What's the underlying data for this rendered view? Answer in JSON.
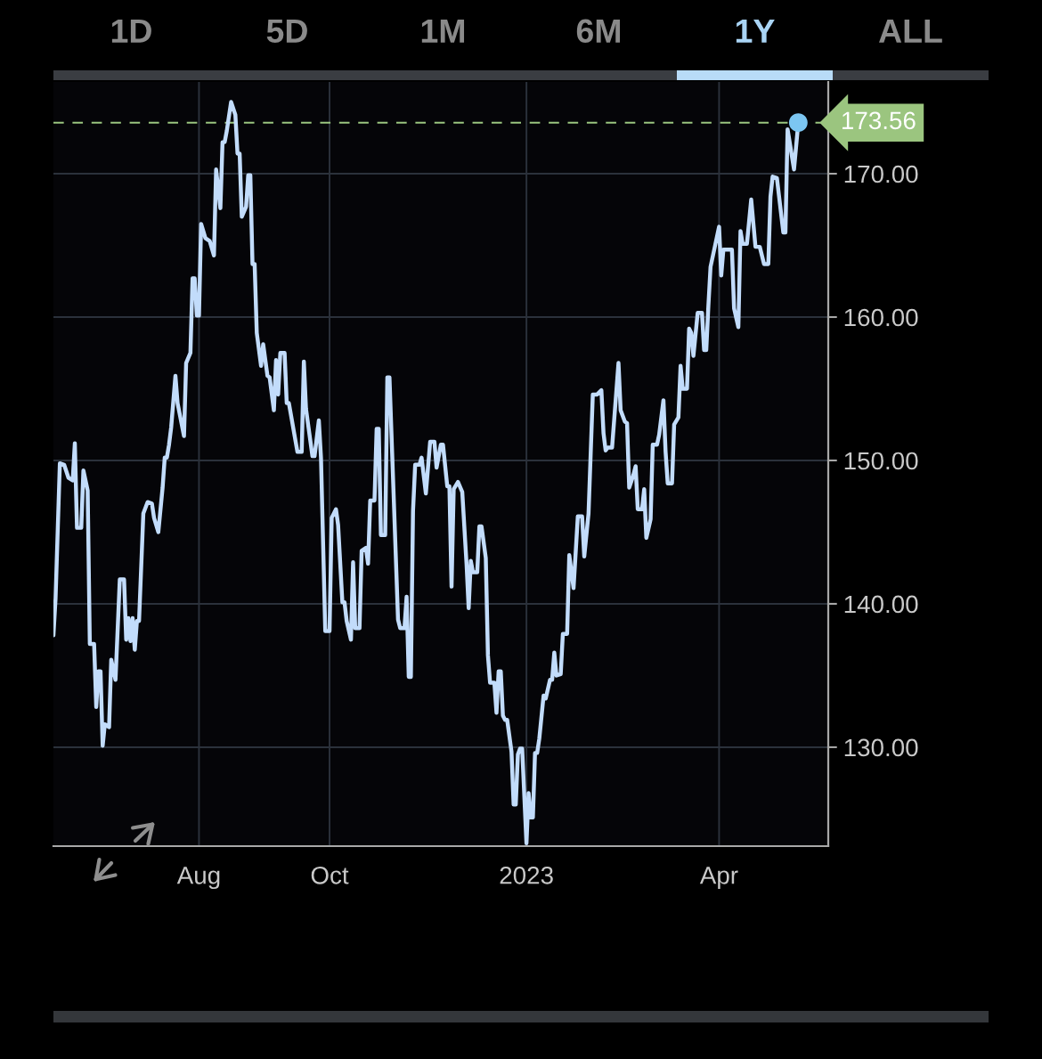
{
  "chart_data": {
    "type": "line",
    "line_style": "solid",
    "grid": true,
    "annotations": [
      "1D",
      "5D",
      "1M",
      "6M",
      "1Y",
      "ALL"
    ],
    "xlim": [
      "2022-05-25",
      "2023-05-22"
    ],
    "xticks": [
      {
        "value": "2022-08-01",
        "label": "Aug"
      },
      {
        "value": "2022-10-01",
        "label": "Oct"
      },
      {
        "value": "2023-01-01",
        "label": "2023"
      },
      {
        "value": "2023-04-01",
        "label": "Apr"
      }
    ],
    "ylim": [
      123.1,
      176.4
    ],
    "yticks": [
      {
        "value": 130,
        "label": "130.00"
      },
      {
        "value": 140,
        "label": "140.00"
      },
      {
        "value": 150,
        "label": "150.00"
      },
      {
        "value": 160,
        "label": "160.00"
      },
      {
        "value": 170,
        "label": "170.00"
      }
    ],
    "ref_lines": [
      {
        "axis": "y",
        "value": 173.56,
        "label": "173.56",
        "color": "#9bc57f",
        "line_style": "dashed"
      }
    ],
    "x": [
      "2022-05-25",
      "2022-05-26",
      "2022-05-28",
      "2022-05-30",
      "2022-06-01",
      "2022-06-03",
      "2022-06-04",
      "2022-06-05",
      "2022-06-07",
      "2022-06-08",
      "2022-06-10",
      "2022-06-11",
      "2022-06-13",
      "2022-06-14",
      "2022-06-15",
      "2022-06-16",
      "2022-06-17",
      "2022-06-18",
      "2022-06-20",
      "2022-06-21",
      "2022-06-23",
      "2022-06-25",
      "2022-06-27",
      "2022-06-28",
      "2022-06-29",
      "2022-06-30",
      "2022-07-01",
      "2022-07-02",
      "2022-07-03",
      "2022-07-04",
      "2022-07-06",
      "2022-07-08",
      "2022-07-10",
      "2022-07-11",
      "2022-07-13",
      "2022-07-15",
      "2022-07-16",
      "2022-07-17",
      "2022-07-18",
      "2022-07-19",
      "2022-07-21",
      "2022-07-22",
      "2022-07-25",
      "2022-07-26",
      "2022-07-28",
      "2022-07-29",
      "2022-07-30",
      "2022-07-31",
      "2022-08-01",
      "2022-08-02",
      "2022-08-04",
      "2022-08-06",
      "2022-08-08",
      "2022-08-09",
      "2022-08-11",
      "2022-08-12",
      "2022-08-13",
      "2022-08-14",
      "2022-08-16",
      "2022-08-18",
      "2022-08-19",
      "2022-08-20",
      "2022-08-21",
      "2022-08-23",
      "2022-08-24",
      "2022-08-25",
      "2022-08-26",
      "2022-08-27",
      "2022-08-28",
      "2022-08-30",
      "2022-08-31",
      "2022-09-02",
      "2022-09-03",
      "2022-09-05",
      "2022-09-06",
      "2022-09-07",
      "2022-09-08",
      "2022-09-10",
      "2022-09-11",
      "2022-09-12",
      "2022-09-16",
      "2022-09-18",
      "2022-09-19",
      "2022-09-20",
      "2022-09-21",
      "2022-09-23",
      "2022-09-24",
      "2022-09-26",
      "2022-09-27",
      "2022-09-29",
      "2022-10-01",
      "2022-10-02",
      "2022-10-04",
      "2022-10-05",
      "2022-10-07",
      "2022-10-08",
      "2022-10-09",
      "2022-10-11",
      "2022-10-12",
      "2022-10-13",
      "2022-10-15",
      "2022-10-16",
      "2022-10-18",
      "2022-10-19",
      "2022-10-20",
      "2022-10-22",
      "2022-10-23",
      "2022-10-24",
      "2022-10-25",
      "2022-10-27",
      "2022-10-28",
      "2022-10-29",
      "2022-11-02",
      "2022-11-03",
      "2022-11-05",
      "2022-11-06",
      "2022-11-07",
      "2022-11-08",
      "2022-11-09",
      "2022-11-10",
      "2022-11-12",
      "2022-11-13",
      "2022-11-15",
      "2022-11-17",
      "2022-11-19",
      "2022-11-20",
      "2022-11-22",
      "2022-11-23",
      "2022-11-25",
      "2022-11-26",
      "2022-11-27",
      "2022-11-28",
      "2022-11-30",
      "2022-12-02",
      "2022-12-04",
      "2022-12-05",
      "2022-12-06",
      "2022-12-07",
      "2022-12-09",
      "2022-12-10",
      "2022-12-11",
      "2022-12-13",
      "2022-12-14",
      "2022-12-15",
      "2022-12-17",
      "2022-12-18",
      "2022-12-19",
      "2022-12-20",
      "2022-12-21",
      "2022-12-22",
      "2022-12-23",
      "2022-12-25",
      "2022-12-26",
      "2022-12-27",
      "2022-12-28",
      "2022-12-29",
      "2022-12-30",
      "2023-01-01",
      "2023-01-02",
      "2023-01-03",
      "2023-01-04",
      "2023-01-05",
      "2023-01-06",
      "2023-01-07",
      "2023-01-09",
      "2023-01-10",
      "2023-01-12",
      "2023-01-13",
      "2023-01-14",
      "2023-01-15",
      "2023-01-17",
      "2023-01-18",
      "2023-01-20",
      "2023-01-21",
      "2023-01-23",
      "2023-01-25",
      "2023-01-27",
      "2023-01-28",
      "2023-01-30",
      "2023-02-01",
      "2023-02-03",
      "2023-02-05",
      "2023-02-06",
      "2023-02-07",
      "2023-02-08",
      "2023-02-10",
      "2023-02-13",
      "2023-02-14",
      "2023-02-16",
      "2023-02-17",
      "2023-02-18",
      "2023-02-20",
      "2023-02-21",
      "2023-02-22",
      "2023-02-24",
      "2023-02-25",
      "2023-02-26",
      "2023-02-28",
      "2023-03-01",
      "2023-03-03",
      "2023-03-04",
      "2023-03-06",
      "2023-03-07",
      "2023-03-08",
      "2023-03-10",
      "2023-03-11",
      "2023-03-13",
      "2023-03-14",
      "2023-03-15",
      "2023-03-17",
      "2023-03-18",
      "2023-03-19",
      "2023-03-20",
      "2023-03-22",
      "2023-03-24",
      "2023-03-25",
      "2023-03-26",
      "2023-03-27",
      "2023-03-28",
      "2023-03-30",
      "2023-04-01",
      "2023-04-02",
      "2023-04-03",
      "2023-04-07",
      "2023-04-08",
      "2023-04-10",
      "2023-04-11",
      "2023-04-12",
      "2023-04-14",
      "2023-04-16",
      "2023-04-18",
      "2023-04-20",
      "2023-04-22",
      "2023-04-24",
      "2023-04-25",
      "2023-04-26",
      "2023-04-28",
      "2023-05-01",
      "2023-05-02",
      "2023-05-03",
      "2023-05-06",
      "2023-05-08"
    ],
    "series": [
      {
        "color": "#c2dcfb",
        "values": [
          137.8,
          140.4,
          149.8,
          149.7,
          148.8,
          148.6,
          151.2,
          145.3,
          145.3,
          149.3,
          147.9,
          137.2,
          137.2,
          132.8,
          135.3,
          135.3,
          130.1,
          131.6,
          131.4,
          136.1,
          134.7,
          141.7,
          141.7,
          137.5,
          139.0,
          137.4,
          139.0,
          136.8,
          138.8,
          138.8,
          146.3,
          147.1,
          147.0,
          146.0,
          145.0,
          148.1,
          150.2,
          150.2,
          151.1,
          152.3,
          155.9,
          154.0,
          151.7,
          156.8,
          157.5,
          162.7,
          162.7,
          160.1,
          160.1,
          166.5,
          165.5,
          165.3,
          164.3,
          170.3,
          167.6,
          172.2,
          172.2,
          173.0,
          175.0,
          174.1,
          171.4,
          171.4,
          167.0,
          167.7,
          169.9,
          169.9,
          163.7,
          163.7,
          158.9,
          156.6,
          158.1,
          155.9,
          155.8,
          153.5,
          157.0,
          154.6,
          157.5,
          157.5,
          154.0,
          154.0,
          150.6,
          150.6,
          156.9,
          153.6,
          152.5,
          150.3,
          150.3,
          152.8,
          150.2,
          138.1,
          138.1,
          146.0,
          146.6,
          145.5,
          140.1,
          140.1,
          138.8,
          137.5,
          142.9,
          138.3,
          138.3,
          143.7,
          143.9,
          142.8,
          147.2,
          147.2,
          152.2,
          152.2,
          144.8,
          144.8,
          155.8,
          155.8,
          138.9,
          138.3,
          138.3,
          140.5,
          134.9,
          134.9,
          146.5,
          149.7,
          149.7,
          150.2,
          147.7,
          151.3,
          151.3,
          149.5,
          151.1,
          151.1,
          148.2,
          148.2,
          141.2,
          148.0,
          148.5,
          147.8,
          142.8,
          139.7,
          143.0,
          142.2,
          142.2,
          145.4,
          145.4,
          143.2,
          136.4,
          134.5,
          134.5,
          132.4,
          135.3,
          135.3,
          132.2,
          131.9,
          131.9,
          129.7,
          126.0,
          126.0,
          129.5,
          129.9,
          129.9,
          123.3,
          126.8,
          125.1,
          125.1,
          129.6,
          129.6,
          130.6,
          133.6,
          133.4,
          134.7,
          134.7,
          136.6,
          135.0,
          135.1,
          137.9,
          137.9,
          143.4,
          141.1,
          146.1,
          146.1,
          143.3,
          146.3,
          154.6,
          154.6,
          154.9,
          151.9,
          150.7,
          150.9,
          150.9,
          156.8,
          153.5,
          152.7,
          152.6,
          148.1,
          149.0,
          149.6,
          146.6,
          146.6,
          148.0,
          144.6,
          145.9,
          151.1,
          151.1,
          151.8,
          154.2,
          150.6,
          148.4,
          148.4,
          152.5,
          153.0,
          156.6,
          155.0,
          155.0,
          159.2,
          158.9,
          157.3,
          160.3,
          160.3,
          157.7,
          157.7,
          160.8,
          163.5,
          164.9,
          166.3,
          162.9,
          164.7,
          164.7,
          160.6,
          159.3,
          166.0,
          165.1,
          165.1,
          168.2,
          164.9,
          164.9,
          163.7,
          163.7,
          168.4,
          169.8,
          169.7,
          165.9,
          165.9,
          173.1,
          170.3,
          173.56
        ]
      }
    ]
  }
}
